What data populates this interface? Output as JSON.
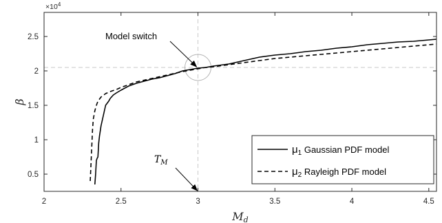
{
  "chart_data": {
    "type": "line",
    "title": "",
    "xlabel": "M_d",
    "ylabel": "β",
    "xlim": [
      2,
      4.55
    ],
    "ylim": [
      2500,
      28500
    ],
    "y_exponent_label": "×10^4",
    "x_ticks": [
      2,
      2.5,
      3,
      3.5,
      4,
      4.5
    ],
    "x_tick_labels": [
      "2",
      "2.5",
      "3",
      "3.5",
      "4",
      "4.5"
    ],
    "y_ticks": [
      5000,
      10000,
      15000,
      20000,
      25000
    ],
    "y_tick_labels": [
      "0.5",
      "1",
      "1.5",
      "2",
      "2.5"
    ],
    "grid": false,
    "legend_position": "bottom-right",
    "series": [
      {
        "name": "Gaussian PDF model",
        "legend_symbol": "μ",
        "legend_subscript": "1",
        "style": "solid",
        "color": "#000000",
        "x": [
          2.33,
          2.335,
          2.34,
          2.345,
          2.35,
          2.355,
          2.36,
          2.37,
          2.38,
          2.385,
          2.39,
          2.4,
          2.41,
          2.42,
          2.43,
          2.45,
          2.47,
          2.5,
          2.55,
          2.6,
          2.65,
          2.7,
          2.75,
          2.8,
          2.85,
          2.9,
          2.95,
          3.0,
          3.05,
          3.1,
          3.2,
          3.3,
          3.4,
          3.5,
          3.6,
          3.7,
          3.8,
          3.9,
          4.0,
          4.1,
          4.2,
          4.3,
          4.4,
          4.5,
          4.55
        ],
        "y": [
          3500,
          5000,
          7000,
          7300,
          7500,
          9500,
          10500,
          12000,
          13000,
          13500,
          14000,
          15000,
          15300,
          15600,
          16000,
          16500,
          16800,
          17200,
          17800,
          18200,
          18500,
          18800,
          19000,
          19300,
          19600,
          20000,
          20200,
          20400,
          20500,
          20700,
          21000,
          21500,
          22000,
          22300,
          22500,
          22800,
          23000,
          23300,
          23500,
          23800,
          24000,
          24200,
          24300,
          24500,
          24600
        ]
      },
      {
        "name": "Rayleigh PDF model",
        "legend_symbol": "μ",
        "legend_subscript": "2",
        "style": "dashed",
        "color": "#000000",
        "x": [
          2.3,
          2.305,
          2.31,
          2.315,
          2.32,
          2.33,
          2.34,
          2.35,
          2.37,
          2.4,
          2.43,
          2.47,
          2.5,
          2.55,
          2.6,
          2.7,
          2.8,
          2.9,
          3.0,
          3.05,
          3.1,
          3.2,
          3.3,
          3.4,
          3.5,
          3.6,
          3.7,
          3.8,
          3.9,
          4.0,
          4.1,
          4.2,
          4.3,
          4.4,
          4.5,
          4.55
        ],
        "y": [
          4000,
          6500,
          9000,
          11500,
          13000,
          14200,
          15000,
          15600,
          16200,
          16700,
          17000,
          17300,
          17600,
          18000,
          18400,
          18900,
          19400,
          19900,
          20300,
          20500,
          20600,
          20900,
          21200,
          21500,
          21800,
          22000,
          22200,
          22400,
          22600,
          22800,
          23000,
          23200,
          23400,
          23600,
          23800,
          23900
        ]
      }
    ],
    "reference_lines": {
      "vertical_x": 3,
      "horizontal_y": 20500,
      "color": "#c8c8c8"
    },
    "annotations": [
      {
        "text": "Model switch",
        "points_to": [
          3,
          20500
        ]
      },
      {
        "text": "T_M",
        "points_to": [
          3,
          2500
        ]
      }
    ]
  }
}
